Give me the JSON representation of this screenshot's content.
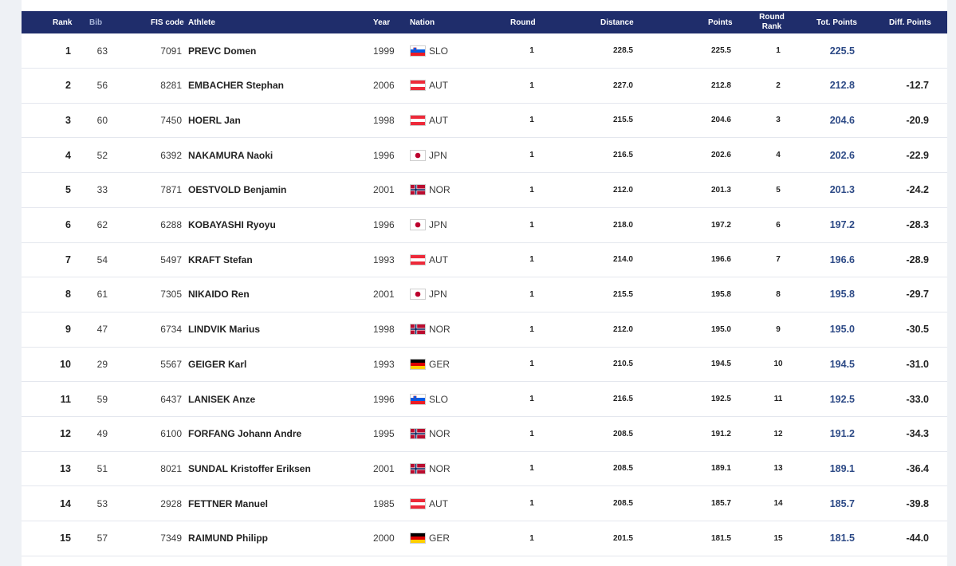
{
  "table": {
    "headers": {
      "rank": "Rank",
      "bib": "Bib",
      "fis": "FIS code",
      "athlete": "Athlete",
      "year": "Year",
      "nation": "Nation",
      "round": "Round",
      "distance": "Distance",
      "points": "Points",
      "round_rank_1": "Round",
      "round_rank_2": "Rank",
      "tot": "Tot. Points",
      "diff": "Diff. Points"
    },
    "rows": [
      {
        "rank": "1",
        "bib": "63",
        "fis": "7091",
        "athlete": "PREVC Domen",
        "year": "1999",
        "nation": "SLO",
        "round": "1",
        "distance": "228.5",
        "points": "225.5",
        "round_rank": "1",
        "tot": "225.5",
        "diff": ""
      },
      {
        "rank": "2",
        "bib": "56",
        "fis": "8281",
        "athlete": "EMBACHER Stephan",
        "year": "2006",
        "nation": "AUT",
        "round": "1",
        "distance": "227.0",
        "points": "212.8",
        "round_rank": "2",
        "tot": "212.8",
        "diff": "-12.7"
      },
      {
        "rank": "3",
        "bib": "60",
        "fis": "7450",
        "athlete": "HOERL Jan",
        "year": "1998",
        "nation": "AUT",
        "round": "1",
        "distance": "215.5",
        "points": "204.6",
        "round_rank": "3",
        "tot": "204.6",
        "diff": "-20.9"
      },
      {
        "rank": "4",
        "bib": "52",
        "fis": "6392",
        "athlete": "NAKAMURA Naoki",
        "year": "1996",
        "nation": "JPN",
        "round": "1",
        "distance": "216.5",
        "points": "202.6",
        "round_rank": "4",
        "tot": "202.6",
        "diff": "-22.9"
      },
      {
        "rank": "5",
        "bib": "33",
        "fis": "7871",
        "athlete": "OESTVOLD Benjamin",
        "year": "2001",
        "nation": "NOR",
        "round": "1",
        "distance": "212.0",
        "points": "201.3",
        "round_rank": "5",
        "tot": "201.3",
        "diff": "-24.2"
      },
      {
        "rank": "6",
        "bib": "62",
        "fis": "6288",
        "athlete": "KOBAYASHI Ryoyu",
        "year": "1996",
        "nation": "JPN",
        "round": "1",
        "distance": "218.0",
        "points": "197.2",
        "round_rank": "6",
        "tot": "197.2",
        "diff": "-28.3"
      },
      {
        "rank": "7",
        "bib": "54",
        "fis": "5497",
        "athlete": "KRAFT Stefan",
        "year": "1993",
        "nation": "AUT",
        "round": "1",
        "distance": "214.0",
        "points": "196.6",
        "round_rank": "7",
        "tot": "196.6",
        "diff": "-28.9"
      },
      {
        "rank": "8",
        "bib": "61",
        "fis": "7305",
        "athlete": "NIKAIDO Ren",
        "year": "2001",
        "nation": "JPN",
        "round": "1",
        "distance": "215.5",
        "points": "195.8",
        "round_rank": "8",
        "tot": "195.8",
        "diff": "-29.7"
      },
      {
        "rank": "9",
        "bib": "47",
        "fis": "6734",
        "athlete": "LINDVIK Marius",
        "year": "1998",
        "nation": "NOR",
        "round": "1",
        "distance": "212.0",
        "points": "195.0",
        "round_rank": "9",
        "tot": "195.0",
        "diff": "-30.5"
      },
      {
        "rank": "10",
        "bib": "29",
        "fis": "5567",
        "athlete": "GEIGER Karl",
        "year": "1993",
        "nation": "GER",
        "round": "1",
        "distance": "210.5",
        "points": "194.5",
        "round_rank": "10",
        "tot": "194.5",
        "diff": "-31.0"
      },
      {
        "rank": "11",
        "bib": "59",
        "fis": "6437",
        "athlete": "LANISEK Anze",
        "year": "1996",
        "nation": "SLO",
        "round": "1",
        "distance": "216.5",
        "points": "192.5",
        "round_rank": "11",
        "tot": "192.5",
        "diff": "-33.0"
      },
      {
        "rank": "12",
        "bib": "49",
        "fis": "6100",
        "athlete": "FORFANG Johann Andre",
        "year": "1995",
        "nation": "NOR",
        "round": "1",
        "distance": "208.5",
        "points": "191.2",
        "round_rank": "12",
        "tot": "191.2",
        "diff": "-34.3"
      },
      {
        "rank": "13",
        "bib": "51",
        "fis": "8021",
        "athlete": "SUNDAL Kristoffer Eriksen",
        "year": "2001",
        "nation": "NOR",
        "round": "1",
        "distance": "208.5",
        "points": "189.1",
        "round_rank": "13",
        "tot": "189.1",
        "diff": "-36.4"
      },
      {
        "rank": "14",
        "bib": "53",
        "fis": "2928",
        "athlete": "FETTNER Manuel",
        "year": "1985",
        "nation": "AUT",
        "round": "1",
        "distance": "208.5",
        "points": "185.7",
        "round_rank": "14",
        "tot": "185.7",
        "diff": "-39.8"
      },
      {
        "rank": "15",
        "bib": "57",
        "fis": "7349",
        "athlete": "RAIMUND Philipp",
        "year": "2000",
        "nation": "GER",
        "round": "1",
        "distance": "201.5",
        "points": "181.5",
        "round_rank": "15",
        "tot": "181.5",
        "diff": "-44.0"
      }
    ]
  },
  "colors": {
    "header_bg": "#1f2d6b",
    "total_points": "#2d4a86"
  },
  "flags": {
    "SLO": "slovenia-flag-icon",
    "AUT": "austria-flag-icon",
    "JPN": "japan-flag-icon",
    "NOR": "norway-flag-icon",
    "GER": "germany-flag-icon"
  }
}
